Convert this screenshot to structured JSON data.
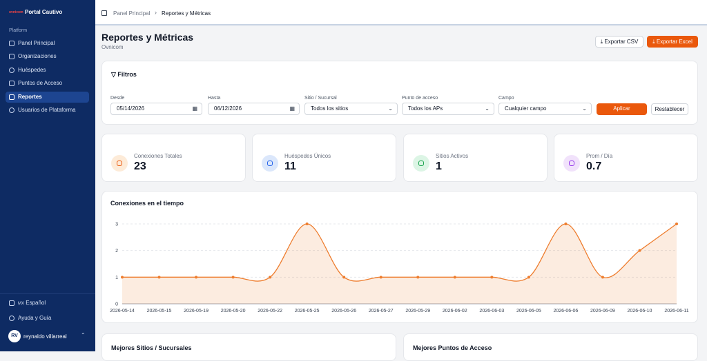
{
  "sidebar": {
    "brand": "Portal Cautivo",
    "logo": "ovnicom",
    "section": "Platform",
    "nav": [
      "Panel Principal",
      "Organizaciones",
      "Huéspedes",
      "Puntos de Acceso",
      "Reportes",
      "Usuarios de Plataforma"
    ],
    "language_flag": "MX",
    "language": "Español",
    "help": "Ayuda y Guía",
    "user_initials": "RV",
    "user_name": "reynaldo villarreal"
  },
  "breadcrumb": [
    "Panel Principal",
    "Reportes y Métricas"
  ],
  "header": {
    "title": "Reportes y Métricas",
    "subtitle": "Ovnicom",
    "buttons": [
      "Exportar CSV",
      "Exportar Excel"
    ]
  },
  "filters": {
    "title": "Filtros",
    "fields": [
      {
        "label": "Desde",
        "value": "05/14/2026"
      },
      {
        "label": "Hasta",
        "value": "06/12/2026"
      },
      {
        "label": "Sitio / Sucursal",
        "value": "Todos los sitios"
      },
      {
        "label": "Punto de acceso",
        "value": "Todos los APs"
      },
      {
        "label": "Campo",
        "value": "Cualquier campo"
      }
    ],
    "buttons": [
      "Aplicar",
      "Restablecer"
    ]
  },
  "stats": [
    {
      "label": "Conexiones Totales",
      "value": "23"
    },
    {
      "label": "Huéspedes Únicos",
      "value": "11"
    },
    {
      "label": "Sitios Activos",
      "value": "1"
    },
    {
      "label": "Prom / Día",
      "value": "0.7"
    }
  ],
  "chart_data": {
    "type": "line",
    "title": "Conexiones en el tiempo",
    "categories": [
      "2026-05-14",
      "2026-05-15",
      "2026-05-19",
      "2026-05-20",
      "2026-05-22",
      "2026-05-25",
      "2026-05-26",
      "2026-05-27",
      "2026-05-29",
      "2026-06-02",
      "2026-06-03",
      "2026-06-05",
      "2026-06-06",
      "2026-06-09",
      "2026-06-10",
      "2026-06-11"
    ],
    "values": [
      1,
      1,
      1,
      1,
      1,
      3,
      1,
      1,
      1,
      1,
      1,
      1,
      3,
      1,
      2,
      3
    ],
    "color": "#ee7d2e",
    "ylim": [
      0,
      3
    ],
    "yticks": [
      0,
      1,
      2,
      3
    ],
    "grid": true,
    "area": true
  },
  "panels": [
    "Mejores Sitios / Sucursales",
    "Mejores Puntos de Acceso"
  ]
}
